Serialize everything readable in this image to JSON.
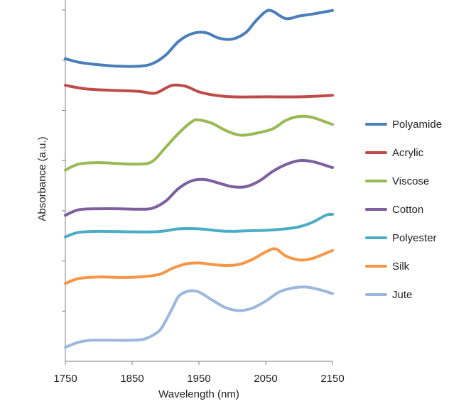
{
  "chart_data": {
    "type": "line",
    "title": "",
    "xlabel": "Wavelength (nm)",
    "ylabel": "Absorbance (a.u.)",
    "xlim": [
      1750,
      2150
    ],
    "xticks": [
      1750,
      1850,
      1950,
      2050,
      2150
    ],
    "ylim": [
      0,
      7.2
    ],
    "yticks": [
      0,
      1,
      2,
      3,
      4,
      5,
      6,
      7
    ],
    "ytick_labels_shown": false,
    "grid": false,
    "legend_position": "right",
    "series": [
      {
        "name": "Polyamide",
        "color": "#4A7EBB",
        "x": [
          1750,
          1770,
          1800,
          1830,
          1860,
          1880,
          1900,
          1920,
          1940,
          1960,
          1980,
          2000,
          2020,
          2035,
          2050,
          2060,
          2080,
          2100,
          2120,
          2150
        ],
        "y": [
          6.03,
          5.96,
          5.91,
          5.88,
          5.88,
          5.93,
          6.1,
          6.38,
          6.53,
          6.55,
          6.44,
          6.42,
          6.55,
          6.78,
          6.97,
          6.98,
          6.83,
          6.88,
          6.92,
          6.99
        ]
      },
      {
        "name": "Acrylic",
        "color": "#BE4B48",
        "x": [
          1750,
          1780,
          1820,
          1860,
          1880,
          1890,
          1910,
          1930,
          1950,
          1970,
          2000,
          2050,
          2100,
          2150
        ],
        "y": [
          5.5,
          5.43,
          5.4,
          5.38,
          5.34,
          5.37,
          5.5,
          5.48,
          5.37,
          5.31,
          5.27,
          5.27,
          5.27,
          5.3
        ]
      },
      {
        "name": "Viscose",
        "color": "#98B954",
        "x": [
          1750,
          1770,
          1800,
          1830,
          1860,
          1880,
          1900,
          1920,
          1940,
          1950,
          1970,
          1990,
          2010,
          2030,
          2060,
          2080,
          2100,
          2120,
          2150
        ],
        "y": [
          3.81,
          3.93,
          3.96,
          3.94,
          3.93,
          3.98,
          4.26,
          4.55,
          4.78,
          4.81,
          4.74,
          4.6,
          4.51,
          4.53,
          4.63,
          4.8,
          4.88,
          4.86,
          4.72
        ]
      },
      {
        "name": "Cotton",
        "color": "#7D5FA0",
        "x": [
          1750,
          1770,
          1800,
          1830,
          1860,
          1880,
          1900,
          1920,
          1940,
          1960,
          1980,
          2000,
          2020,
          2040,
          2060,
          2080,
          2100,
          2120,
          2150
        ],
        "y": [
          2.91,
          3.02,
          3.04,
          3.04,
          3.03,
          3.05,
          3.19,
          3.45,
          3.6,
          3.62,
          3.55,
          3.48,
          3.48,
          3.59,
          3.78,
          3.92,
          4.0,
          3.98,
          3.86
        ]
      },
      {
        "name": "Polyester",
        "color": "#4BACC6",
        "x": [
          1750,
          1770,
          1800,
          1850,
          1880,
          1900,
          1920,
          1950,
          1980,
          2000,
          2020,
          2050,
          2080,
          2100,
          2120,
          2140,
          2150
        ],
        "y": [
          2.48,
          2.57,
          2.59,
          2.58,
          2.58,
          2.6,
          2.64,
          2.64,
          2.6,
          2.59,
          2.6,
          2.61,
          2.64,
          2.68,
          2.77,
          2.91,
          2.93
        ]
      },
      {
        "name": "Silk",
        "color": "#F79646",
        "x": [
          1750,
          1770,
          1800,
          1830,
          1860,
          1890,
          1910,
          1930,
          1950,
          1970,
          1990,
          2010,
          2030,
          2050,
          2065,
          2080,
          2100,
          2120,
          2150
        ],
        "y": [
          1.55,
          1.65,
          1.68,
          1.67,
          1.68,
          1.73,
          1.85,
          1.94,
          1.96,
          1.93,
          1.91,
          1.93,
          2.03,
          2.18,
          2.24,
          2.1,
          2.02,
          2.05,
          2.21
        ]
      },
      {
        "name": "Jute",
        "color": "#9DB7DC",
        "x": [
          1750,
          1770,
          1790,
          1820,
          1850,
          1870,
          1890,
          1900,
          1910,
          1920,
          1935,
          1950,
          1970,
          1990,
          2010,
          2030,
          2050,
          2070,
          2090,
          2110,
          2130,
          2150
        ],
        "y": [
          0.28,
          0.38,
          0.42,
          0.42,
          0.42,
          0.45,
          0.6,
          0.8,
          1.05,
          1.3,
          1.4,
          1.38,
          1.22,
          1.07,
          1.01,
          1.06,
          1.2,
          1.38,
          1.46,
          1.48,
          1.43,
          1.35
        ]
      }
    ]
  }
}
